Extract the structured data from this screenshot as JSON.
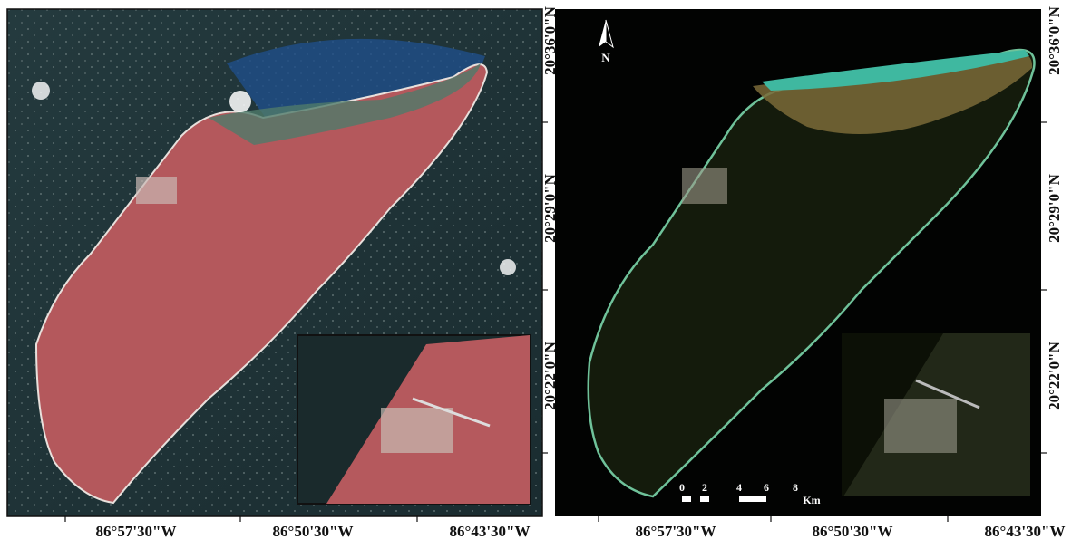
{
  "panels": [
    {
      "longitude_labels": [
        "86°57'30\"W",
        "86°50'30\"W",
        "86°43'30\"W"
      ],
      "latitude_labels": [
        "20°36'0\"N",
        "20°29'0\"N",
        "20°22'0\"N"
      ]
    },
    {
      "longitude_labels": [
        "86°57'30\"W",
        "86°50'30\"W",
        "86°43'30\"W"
      ],
      "latitude_labels": [
        "20°36'0\"N",
        "20°29'0\"N",
        "20°22'0\"N"
      ]
    }
  ],
  "north_arrow": {
    "label": "N"
  },
  "scale_bar": {
    "ticks": [
      "0",
      "2",
      "4",
      "6",
      "8"
    ],
    "unit": "Km"
  }
}
